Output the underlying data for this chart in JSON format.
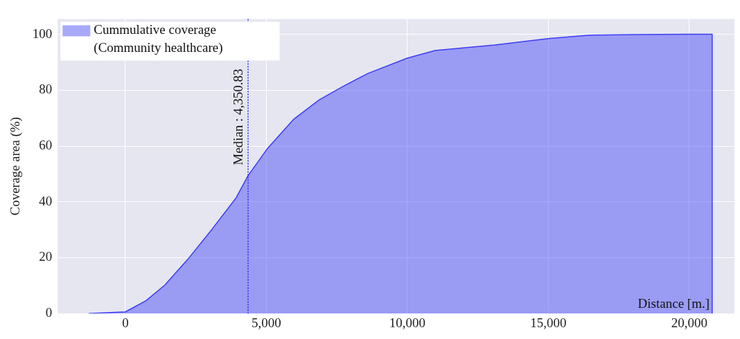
{
  "chart_data": {
    "type": "area",
    "xlabel": "Distance [m.]",
    "ylabel": "Coverage area (%)",
    "series": [
      {
        "name": "Cummulative coverage (Community healthcare)",
        "color": "#3b3bf5",
        "x": [
          -1300,
          0,
          730,
          1400,
          2250,
          3080,
          3930,
          4350,
          5030,
          5960,
          6880,
          7730,
          8600,
          9980,
          10980,
          13100,
          15000,
          16470,
          18000,
          20000,
          20810,
          20810
        ],
        "values": [
          0,
          0.6,
          4.6,
          10.2,
          19.9,
          30.3,
          41.5,
          49.4,
          59,
          69.5,
          76.6,
          81.4,
          86,
          91.4,
          94.2,
          96.2,
          98.5,
          99.7,
          99.9,
          100,
          100,
          0
        ]
      }
    ],
    "xlim": [
      -2400,
      21600
    ],
    "xticks": [
      0,
      {
        "value": 5000,
        "label": "5,000"
      },
      {
        "value": 10000,
        "label": "10,000"
      },
      {
        "value": 15000,
        "label": "15,000"
      },
      {
        "value": 20000,
        "label": "20,000"
      }
    ],
    "ylim": [
      0,
      105.5
    ],
    "yticks": [
      0,
      20,
      40,
      60,
      80,
      100
    ],
    "ref_lines": [
      {
        "axis": "x",
        "value": 4350.83,
        "label": "Median : 4,350.83",
        "color": "#2b2bf0",
        "line_style": "dotted"
      }
    ],
    "grid": true,
    "legend": "top left"
  }
}
